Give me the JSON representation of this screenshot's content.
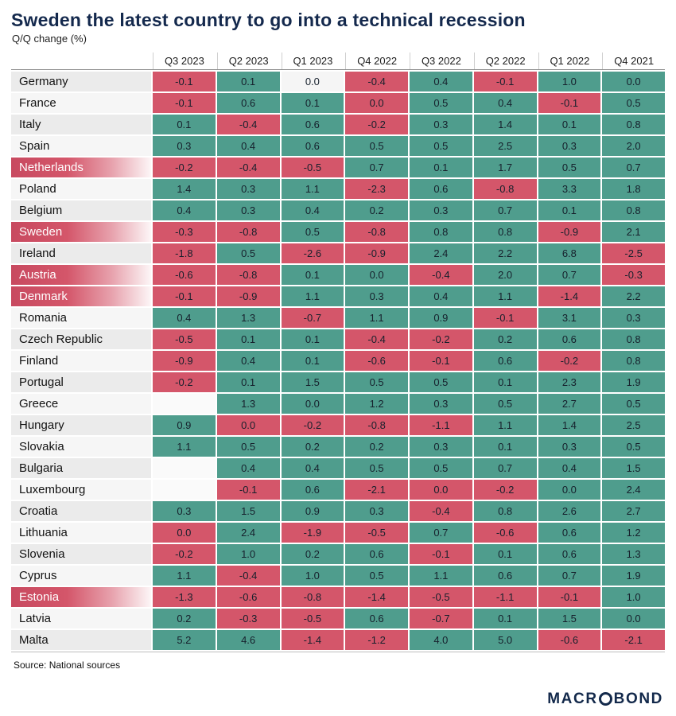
{
  "title": "Sweden the latest country to go into a technical recession",
  "subtitle": "Q/Q change (%)",
  "source": "Source: National sources",
  "logo": {
    "pre": "MACR",
    "post": "BOND"
  },
  "colors": {
    "negative_cell": "#d4566a",
    "positive_cell": "#4f9d8d",
    "neutral_cell": "#f5f5f5",
    "title_navy": "#14294d",
    "highlight_label_red": "#d4566a",
    "highlight_label_text": "#ffffff"
  },
  "chart_data": {
    "type": "heatmap",
    "title": "Sweden the latest country to go into a technical recession",
    "unit": "Q/Q change (%)",
    "columns": [
      "Q3 2023",
      "Q2 2023",
      "Q1 2023",
      "Q4 2022",
      "Q3 2022",
      "Q2 2022",
      "Q1 2022",
      "Q4 2021"
    ],
    "color_key": {
      "r": "negative (red)",
      "g": "positive (teal)",
      "w": "zero/neutral (white)",
      "e": "no data (blank)"
    },
    "highlighted_rows": [
      "Netherlands",
      "Sweden",
      "Austria",
      "Denmark",
      "Estonia"
    ],
    "rows": [
      {
        "country": "Germany",
        "highlighted": false,
        "values": [
          "-0.1",
          "0.1",
          "0.0",
          "-0.4",
          "0.4",
          "-0.1",
          "1.0",
          "0.0"
        ],
        "colors": [
          "r",
          "g",
          "w",
          "r",
          "g",
          "r",
          "g",
          "g"
        ]
      },
      {
        "country": "France",
        "highlighted": false,
        "values": [
          "-0.1",
          "0.6",
          "0.1",
          "0.0",
          "0.5",
          "0.4",
          "-0.1",
          "0.5"
        ],
        "colors": [
          "r",
          "g",
          "g",
          "r",
          "g",
          "g",
          "r",
          "g"
        ]
      },
      {
        "country": "Italy",
        "highlighted": false,
        "values": [
          "0.1",
          "-0.4",
          "0.6",
          "-0.2",
          "0.3",
          "1.4",
          "0.1",
          "0.8"
        ],
        "colors": [
          "g",
          "r",
          "g",
          "r",
          "g",
          "g",
          "g",
          "g"
        ]
      },
      {
        "country": "Spain",
        "highlighted": false,
        "values": [
          "0.3",
          "0.4",
          "0.6",
          "0.5",
          "0.5",
          "2.5",
          "0.3",
          "2.0"
        ],
        "colors": [
          "g",
          "g",
          "g",
          "g",
          "g",
          "g",
          "g",
          "g"
        ]
      },
      {
        "country": "Netherlands",
        "highlighted": true,
        "values": [
          "-0.2",
          "-0.4",
          "-0.5",
          "0.7",
          "0.1",
          "1.7",
          "0.5",
          "0.7"
        ],
        "colors": [
          "r",
          "r",
          "r",
          "g",
          "g",
          "g",
          "g",
          "g"
        ]
      },
      {
        "country": "Poland",
        "highlighted": false,
        "values": [
          "1.4",
          "0.3",
          "1.1",
          "-2.3",
          "0.6",
          "-0.8",
          "3.3",
          "1.8"
        ],
        "colors": [
          "g",
          "g",
          "g",
          "r",
          "g",
          "r",
          "g",
          "g"
        ]
      },
      {
        "country": "Belgium",
        "highlighted": false,
        "values": [
          "0.4",
          "0.3",
          "0.4",
          "0.2",
          "0.3",
          "0.7",
          "0.1",
          "0.8"
        ],
        "colors": [
          "g",
          "g",
          "g",
          "g",
          "g",
          "g",
          "g",
          "g"
        ]
      },
      {
        "country": "Sweden",
        "highlighted": true,
        "values": [
          "-0.3",
          "-0.8",
          "0.5",
          "-0.8",
          "0.8",
          "0.8",
          "-0.9",
          "2.1"
        ],
        "colors": [
          "r",
          "r",
          "g",
          "r",
          "g",
          "g",
          "r",
          "g"
        ]
      },
      {
        "country": "Ireland",
        "highlighted": false,
        "values": [
          "-1.8",
          "0.5",
          "-2.6",
          "-0.9",
          "2.4",
          "2.2",
          "6.8",
          "-2.5"
        ],
        "colors": [
          "r",
          "g",
          "r",
          "r",
          "g",
          "g",
          "g",
          "r"
        ]
      },
      {
        "country": "Austria",
        "highlighted": true,
        "values": [
          "-0.6",
          "-0.8",
          "0.1",
          "0.0",
          "-0.4",
          "2.0",
          "0.7",
          "-0.3"
        ],
        "colors": [
          "r",
          "r",
          "g",
          "g",
          "r",
          "g",
          "g",
          "r"
        ]
      },
      {
        "country": "Denmark",
        "highlighted": true,
        "values": [
          "-0.1",
          "-0.9",
          "1.1",
          "0.3",
          "0.4",
          "1.1",
          "-1.4",
          "2.2"
        ],
        "colors": [
          "r",
          "r",
          "g",
          "g",
          "g",
          "g",
          "r",
          "g"
        ]
      },
      {
        "country": "Romania",
        "highlighted": false,
        "values": [
          "0.4",
          "1.3",
          "-0.7",
          "1.1",
          "0.9",
          "-0.1",
          "3.1",
          "0.3"
        ],
        "colors": [
          "g",
          "g",
          "r",
          "g",
          "g",
          "r",
          "g",
          "g"
        ]
      },
      {
        "country": "Czech Republic",
        "highlighted": false,
        "values": [
          "-0.5",
          "0.1",
          "0.1",
          "-0.4",
          "-0.2",
          "0.2",
          "0.6",
          "0.8"
        ],
        "colors": [
          "r",
          "g",
          "g",
          "r",
          "r",
          "g",
          "g",
          "g"
        ]
      },
      {
        "country": "Finland",
        "highlighted": false,
        "values": [
          "-0.9",
          "0.4",
          "0.1",
          "-0.6",
          "-0.1",
          "0.6",
          "-0.2",
          "0.8"
        ],
        "colors": [
          "r",
          "g",
          "g",
          "r",
          "r",
          "g",
          "r",
          "g"
        ]
      },
      {
        "country": "Portugal",
        "highlighted": false,
        "values": [
          "-0.2",
          "0.1",
          "1.5",
          "0.5",
          "0.5",
          "0.1",
          "2.3",
          "1.9"
        ],
        "colors": [
          "r",
          "g",
          "g",
          "g",
          "g",
          "g",
          "g",
          "g"
        ]
      },
      {
        "country": "Greece",
        "highlighted": false,
        "values": [
          "",
          "1.3",
          "0.0",
          "1.2",
          "0.3",
          "0.5",
          "2.7",
          "0.5"
        ],
        "colors": [
          "e",
          "g",
          "g",
          "g",
          "g",
          "g",
          "g",
          "g"
        ]
      },
      {
        "country": "Hungary",
        "highlighted": false,
        "values": [
          "0.9",
          "0.0",
          "-0.2",
          "-0.8",
          "-1.1",
          "1.1",
          "1.4",
          "2.5"
        ],
        "colors": [
          "g",
          "r",
          "r",
          "r",
          "r",
          "g",
          "g",
          "g"
        ]
      },
      {
        "country": "Slovakia",
        "highlighted": false,
        "values": [
          "1.1",
          "0.5",
          "0.2",
          "0.2",
          "0.3",
          "0.1",
          "0.3",
          "0.5"
        ],
        "colors": [
          "g",
          "g",
          "g",
          "g",
          "g",
          "g",
          "g",
          "g"
        ]
      },
      {
        "country": "Bulgaria",
        "highlighted": false,
        "values": [
          "",
          "0.4",
          "0.4",
          "0.5",
          "0.5",
          "0.7",
          "0.4",
          "1.5"
        ],
        "colors": [
          "e",
          "g",
          "g",
          "g",
          "g",
          "g",
          "g",
          "g"
        ]
      },
      {
        "country": "Luxembourg",
        "highlighted": false,
        "values": [
          "",
          "-0.1",
          "0.6",
          "-2.1",
          "0.0",
          "-0.2",
          "0.0",
          "2.4"
        ],
        "colors": [
          "e",
          "r",
          "g",
          "r",
          "r",
          "r",
          "g",
          "g"
        ]
      },
      {
        "country": "Croatia",
        "highlighted": false,
        "values": [
          "0.3",
          "1.5",
          "0.9",
          "0.3",
          "-0.4",
          "0.8",
          "2.6",
          "2.7"
        ],
        "colors": [
          "g",
          "g",
          "g",
          "g",
          "r",
          "g",
          "g",
          "g"
        ]
      },
      {
        "country": "Lithuania",
        "highlighted": false,
        "values": [
          "0.0",
          "2.4",
          "-1.9",
          "-0.5",
          "0.7",
          "-0.6",
          "0.6",
          "1.2"
        ],
        "colors": [
          "r",
          "g",
          "r",
          "r",
          "g",
          "r",
          "g",
          "g"
        ]
      },
      {
        "country": "Slovenia",
        "highlighted": false,
        "values": [
          "-0.2",
          "1.0",
          "0.2",
          "0.6",
          "-0.1",
          "0.1",
          "0.6",
          "1.3"
        ],
        "colors": [
          "r",
          "g",
          "g",
          "g",
          "r",
          "g",
          "g",
          "g"
        ]
      },
      {
        "country": "Cyprus",
        "highlighted": false,
        "values": [
          "1.1",
          "-0.4",
          "1.0",
          "0.5",
          "1.1",
          "0.6",
          "0.7",
          "1.9"
        ],
        "colors": [
          "g",
          "r",
          "g",
          "g",
          "g",
          "g",
          "g",
          "g"
        ]
      },
      {
        "country": "Estonia",
        "highlighted": true,
        "values": [
          "-1.3",
          "-0.6",
          "-0.8",
          "-1.4",
          "-0.5",
          "-1.1",
          "-0.1",
          "1.0"
        ],
        "colors": [
          "r",
          "r",
          "r",
          "r",
          "r",
          "r",
          "r",
          "g"
        ]
      },
      {
        "country": "Latvia",
        "highlighted": false,
        "values": [
          "0.2",
          "-0.3",
          "-0.5",
          "0.6",
          "-0.7",
          "0.1",
          "1.5",
          "0.0"
        ],
        "colors": [
          "g",
          "r",
          "r",
          "g",
          "r",
          "g",
          "g",
          "g"
        ]
      },
      {
        "country": "Malta",
        "highlighted": false,
        "values": [
          "5.2",
          "4.6",
          "-1.4",
          "-1.2",
          "4.0",
          "5.0",
          "-0.6",
          "-2.1"
        ],
        "colors": [
          "g",
          "g",
          "r",
          "r",
          "g",
          "g",
          "r",
          "r"
        ]
      }
    ]
  }
}
